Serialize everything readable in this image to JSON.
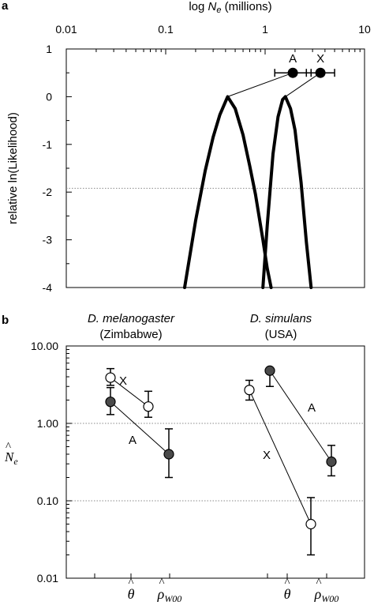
{
  "chart_data": [
    {
      "panel_label": "a",
      "type": "line",
      "x_axis_title_prefix": "log ",
      "x_axis_title_symbol": "N",
      "x_axis_title_subscript": "e",
      "x_axis_title_suffix": " (millions)",
      "xscale": "log",
      "xlim": [
        0.01,
        10
      ],
      "x_ticks": [
        0.01,
        0.1,
        1,
        10
      ],
      "x_tick_labels": [
        "0.01",
        "0.1",
        "1",
        "10"
      ],
      "ylabel": "relative ln(Likelihood)",
      "ylim": [
        -4,
        1
      ],
      "y_ticks": [
        1,
        0,
        -1,
        -2,
        -3,
        -4
      ],
      "y_tick_labels": [
        "1",
        "0",
        "-1",
        "-2",
        "-3",
        "-4"
      ],
      "reference_line_y": -1.92,
      "curves": [
        {
          "peak_x": 0.42,
          "peak_y": 0,
          "x": [
            0.155,
            0.2,
            0.25,
            0.3,
            0.35,
            0.42,
            0.5,
            0.6,
            0.7,
            0.8,
            0.95,
            1.05,
            1.15
          ],
          "y": [
            -4,
            -2.6,
            -1.55,
            -0.85,
            -0.38,
            0,
            -0.25,
            -0.8,
            -1.45,
            -2.05,
            -3.0,
            -3.6,
            -4
          ]
        },
        {
          "peak_x": 1.6,
          "peak_y": 0,
          "x": [
            0.95,
            1.05,
            1.2,
            1.35,
            1.5,
            1.6,
            1.8,
            2.0,
            2.3,
            2.6,
            2.9
          ],
          "y": [
            -4,
            -2.7,
            -1.2,
            -0.42,
            -0.06,
            0,
            -0.25,
            -0.7,
            -1.8,
            -3.05,
            -4
          ]
        }
      ],
      "points": [
        {
          "label": "A",
          "x": 1.9,
          "y": 0.5,
          "x_err": [
            1.25,
            2.9
          ]
        },
        {
          "label": "X",
          "x": 3.6,
          "y": 0.5,
          "x_err": [
            2.6,
            5.0
          ]
        }
      ]
    },
    {
      "panel_label": "b",
      "type": "scatter",
      "yscale": "log",
      "ylim": [
        0.01,
        10
      ],
      "y_ticks": [
        10,
        1,
        0.1,
        0.01
      ],
      "y_tick_labels": [
        "10.00",
        "1.00",
        "0.10",
        "0.01"
      ],
      "ylabel_symbol": "N",
      "ylabel_subscript": "e",
      "group_titles": [
        {
          "species": "D. melanogaster",
          "location": "(Zimbabwe)"
        },
        {
          "species": "D. simulans",
          "location": "(USA)"
        }
      ],
      "estimator_labels": [
        {
          "symbol": "θ",
          "subscript": ""
        },
        {
          "symbol": "ρ",
          "subscript": "W00"
        },
        {
          "symbol": "θ",
          "subscript": ""
        },
        {
          "symbol": "ρ",
          "subscript": "W00"
        }
      ],
      "series": [
        {
          "name": "X",
          "marker": "open",
          "points": [
            {
              "group": 0,
              "estimator": "theta",
              "y": 3.9,
              "err": [
                3.1,
                5.1
              ]
            },
            {
              "group": 0,
              "estimator": "rho",
              "y": 1.65,
              "err": [
                1.2,
                2.6
              ]
            },
            {
              "group": 1,
              "estimator": "theta",
              "y": 2.7,
              "err": [
                2.0,
                3.6
              ]
            },
            {
              "group": 1,
              "estimator": "rho",
              "y": 0.05,
              "err": [
                0.02,
                0.11
              ]
            }
          ]
        },
        {
          "name": "A",
          "marker": "filled",
          "points": [
            {
              "group": 0,
              "estimator": "theta",
              "y": 1.9,
              "err": [
                1.3,
                2.9
              ]
            },
            {
              "group": 0,
              "estimator": "rho",
              "y": 0.4,
              "err": [
                0.2,
                0.85
              ]
            },
            {
              "group": 1,
              "estimator": "theta",
              "y": 4.8,
              "err": [
                3.0,
                5.0
              ]
            },
            {
              "group": 1,
              "estimator": "rho",
              "y": 0.32,
              "err": [
                0.21,
                0.52
              ]
            }
          ]
        }
      ]
    }
  ],
  "colors": {
    "filled_marker": "#4a4a4a",
    "curve": "#000000",
    "dotted": "#8a8a8a"
  }
}
